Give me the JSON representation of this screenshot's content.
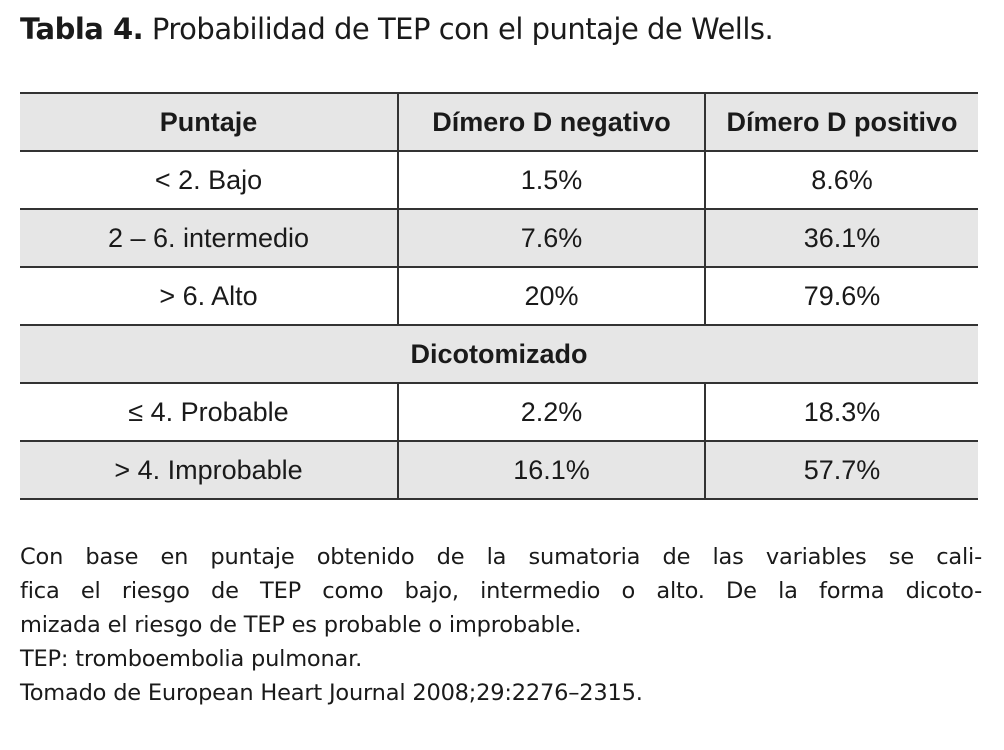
{
  "title": {
    "label": "Tabla 4.",
    "text": "Probabilidad de TEP con el puntaje de Wells."
  },
  "table": {
    "header": [
      "Puntaje",
      "Dímero D negativo",
      "Dímero D positivo"
    ],
    "rows": [
      [
        "< 2. Bajo",
        "1.5%",
        "8.6%"
      ],
      [
        "2 – 6. intermedio",
        "7.6%",
        "36.1%"
      ],
      [
        "> 6. Alto",
        "20%",
        "79.6%"
      ]
    ],
    "section": "Dicotomizado",
    "section_rows": [
      [
        "≤ 4. Probable",
        "2.2%",
        "18.3%"
      ],
      [
        "> 4. Improbable",
        "16.1%",
        "57.7%"
      ]
    ]
  },
  "notes": [
    "Con base en puntaje obtenido de la sumatoria de las variables se cali-",
    "fica el riesgo de TEP como bajo, intermedio o alto. De la forma dicoto-",
    "mizada el riesgo de TEP es probable o improbable.",
    "TEP: tromboembolia pulmonar.",
    "Tomado de European Heart Journal 2008;29:2276–2315."
  ]
}
